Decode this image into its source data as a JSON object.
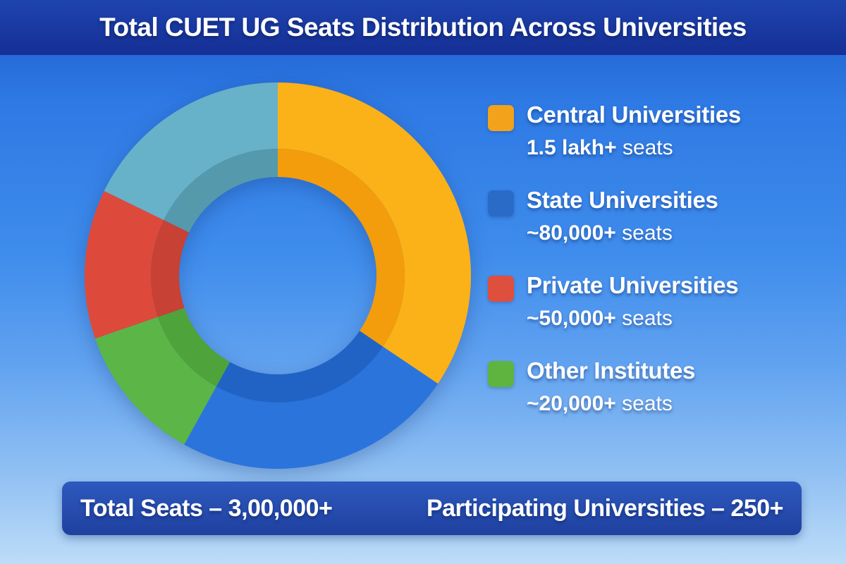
{
  "title": "Total CUET UG Seats Distribution Across Universities",
  "chart_data": {
    "type": "pie",
    "variant": "two-tier donut",
    "title": "Total CUET UG Seats Distribution Across Universities",
    "legend_position": "right",
    "categories": [
      "Central Universities",
      "State Universities",
      "Private Universities",
      "Other Institutes"
    ],
    "values": [
      150000,
      80000,
      50000,
      20000
    ],
    "value_labels": [
      "1.5 lakh+ seats",
      "~80,000+ seats",
      "~50,000+ seats",
      "~20,000+ seats"
    ],
    "totals": {
      "total_seats": "3,00,000+",
      "participating_universities": "250+"
    },
    "drawn_segments": [
      {
        "name": "central-universities",
        "label": "Central Universities",
        "start_deg": 0,
        "end_deg": 124,
        "color": "#FBB118",
        "color_inner": "#F39D0C"
      },
      {
        "name": "state-universities",
        "label": "State Universities",
        "start_deg": 124,
        "end_deg": 209,
        "color": "#2A74DC",
        "color_inner": "#2163C5"
      },
      {
        "name": "other-institutes",
        "label": "Other Institutes",
        "start_deg": 209,
        "end_deg": 251,
        "color": "#5BB647",
        "color_inner": "#4EA33B"
      },
      {
        "name": "private-universities",
        "label": "Private Universities",
        "start_deg": 251,
        "end_deg": 296,
        "color": "#DD4A3B",
        "color_inner": "#C74134"
      },
      {
        "name": "unlabeled",
        "label": null,
        "start_deg": 296,
        "end_deg": 360,
        "color": "#67B2C8",
        "color_inner": "#5599AD"
      }
    ]
  },
  "legend": {
    "items": [
      {
        "label": "Central Universities",
        "value_strong": "1.5 lakh+",
        "value_rest": "seats",
        "color": "#F2A21B"
      },
      {
        "label": "State Universities",
        "value_strong": "~80,000+",
        "value_rest": "seats",
        "color": "#2B6BC8"
      },
      {
        "label": "Private Universities",
        "value_strong": "~50,000+",
        "value_rest": "seats",
        "color": "#DF4F3E"
      },
      {
        "label": "Other Institutes",
        "value_strong": "~20,000+",
        "value_rest": "seats",
        "color": "#5FB43F"
      }
    ]
  },
  "footer": {
    "total_seats_label": "Total Seats – 3,00,000+",
    "participating_label": "Participating Universities – 250+"
  },
  "colors": {
    "title_bar": "#17339E",
    "footer_bar": "#2A52B4",
    "background_top": "#2164D6",
    "background_bottom": "#B7D9F8",
    "text": "#FFFFFF"
  }
}
